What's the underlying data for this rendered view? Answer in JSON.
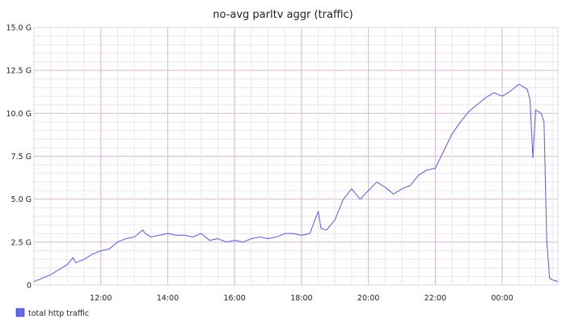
{
  "chart_data": {
    "type": "line",
    "title": "no-avg parltv aggr (traffic)",
    "xlabel": "",
    "ylabel": "",
    "x_range": [
      "10:00",
      "01:40"
    ],
    "ylim": [
      0,
      15
    ],
    "y_ticks": [
      {
        "value": 0,
        "label": "0"
      },
      {
        "value": 2.5,
        "label": "2.5 G"
      },
      {
        "value": 5,
        "label": "5.0 G"
      },
      {
        "value": 7.5,
        "label": "7.5 G"
      },
      {
        "value": 10,
        "label": "10.0 G"
      },
      {
        "value": 12.5,
        "label": "12.5 G"
      },
      {
        "value": 15,
        "label": "15.0 G"
      }
    ],
    "x_ticks": [
      "12:00",
      "14:00",
      "16:00",
      "18:00",
      "20:00",
      "22:00",
      "00:00"
    ],
    "grid": true,
    "legend_position": "bottom-left",
    "series": [
      {
        "name": "total http traffic",
        "color": "#6666ee",
        "x": [
          "10:00",
          "10:15",
          "10:30",
          "10:45",
          "11:00",
          "11:10",
          "11:15",
          "11:30",
          "11:45",
          "12:00",
          "12:15",
          "12:30",
          "12:45",
          "13:00",
          "13:15",
          "13:20",
          "13:30",
          "13:45",
          "14:00",
          "14:15",
          "14:30",
          "14:45",
          "15:00",
          "15:15",
          "15:30",
          "15:45",
          "16:00",
          "16:15",
          "16:30",
          "16:45",
          "17:00",
          "17:15",
          "17:30",
          "17:45",
          "18:00",
          "18:15",
          "18:30",
          "18:35",
          "18:45",
          "19:00",
          "19:15",
          "19:30",
          "19:45",
          "20:00",
          "20:15",
          "20:30",
          "20:45",
          "21:00",
          "21:15",
          "21:30",
          "21:45",
          "22:00",
          "22:15",
          "22:30",
          "22:45",
          "23:00",
          "23:15",
          "23:30",
          "23:45",
          "00:00",
          "00:15",
          "00:30",
          "00:45",
          "00:50",
          "00:55",
          "01:00",
          "01:10",
          "01:15",
          "01:20",
          "01:25",
          "01:30",
          "01:40"
        ],
        "values": [
          0.2,
          0.4,
          0.6,
          0.9,
          1.2,
          1.6,
          1.3,
          1.5,
          1.8,
          2.0,
          2.1,
          2.5,
          2.7,
          2.8,
          3.2,
          3.0,
          2.8,
          2.9,
          3.0,
          2.9,
          2.9,
          2.8,
          3.0,
          2.6,
          2.7,
          2.5,
          2.6,
          2.5,
          2.7,
          2.8,
          2.7,
          2.8,
          3.0,
          3.0,
          2.9,
          3.0,
          4.3,
          3.3,
          3.2,
          3.8,
          5.0,
          5.6,
          5.0,
          5.5,
          6.0,
          5.7,
          5.3,
          5.6,
          5.8,
          6.4,
          6.7,
          6.8,
          7.8,
          8.8,
          9.5,
          10.1,
          10.5,
          10.9,
          11.2,
          11.0,
          11.3,
          11.7,
          11.4,
          10.8,
          7.4,
          10.2,
          10.0,
          9.5,
          2.6,
          0.4,
          0.3,
          0.2
        ]
      }
    ]
  }
}
